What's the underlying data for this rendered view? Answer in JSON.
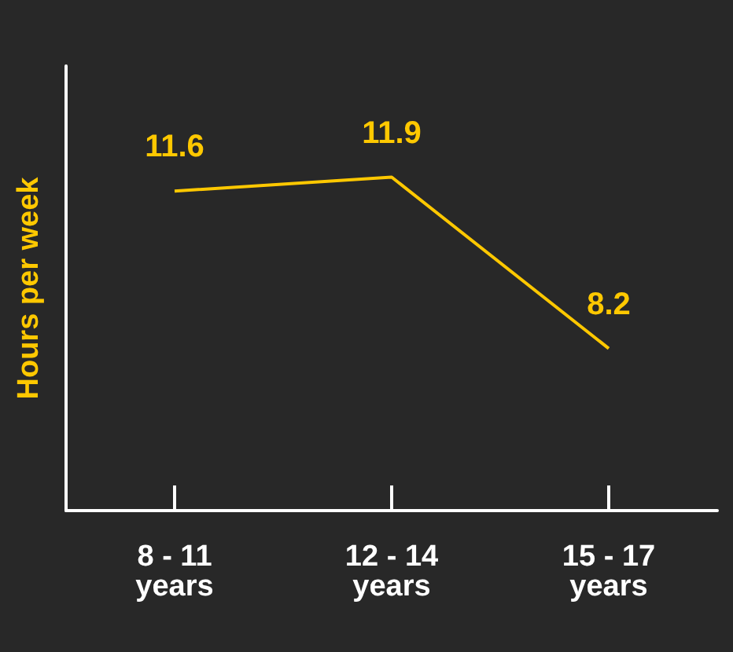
{
  "chart_data": {
    "type": "line",
    "ylabel": "Hours per week",
    "categories": [
      "8 - 11 years",
      "12 - 14 years",
      "15 - 17 years"
    ],
    "series": [
      {
        "color": "#ffc800",
        "values": [
          11.6,
          11.9,
          8.2
        ]
      }
    ],
    "ylim": [
      4.7,
      14.3
    ],
    "data_labels": true,
    "marker": "none",
    "grid": false
  }
}
